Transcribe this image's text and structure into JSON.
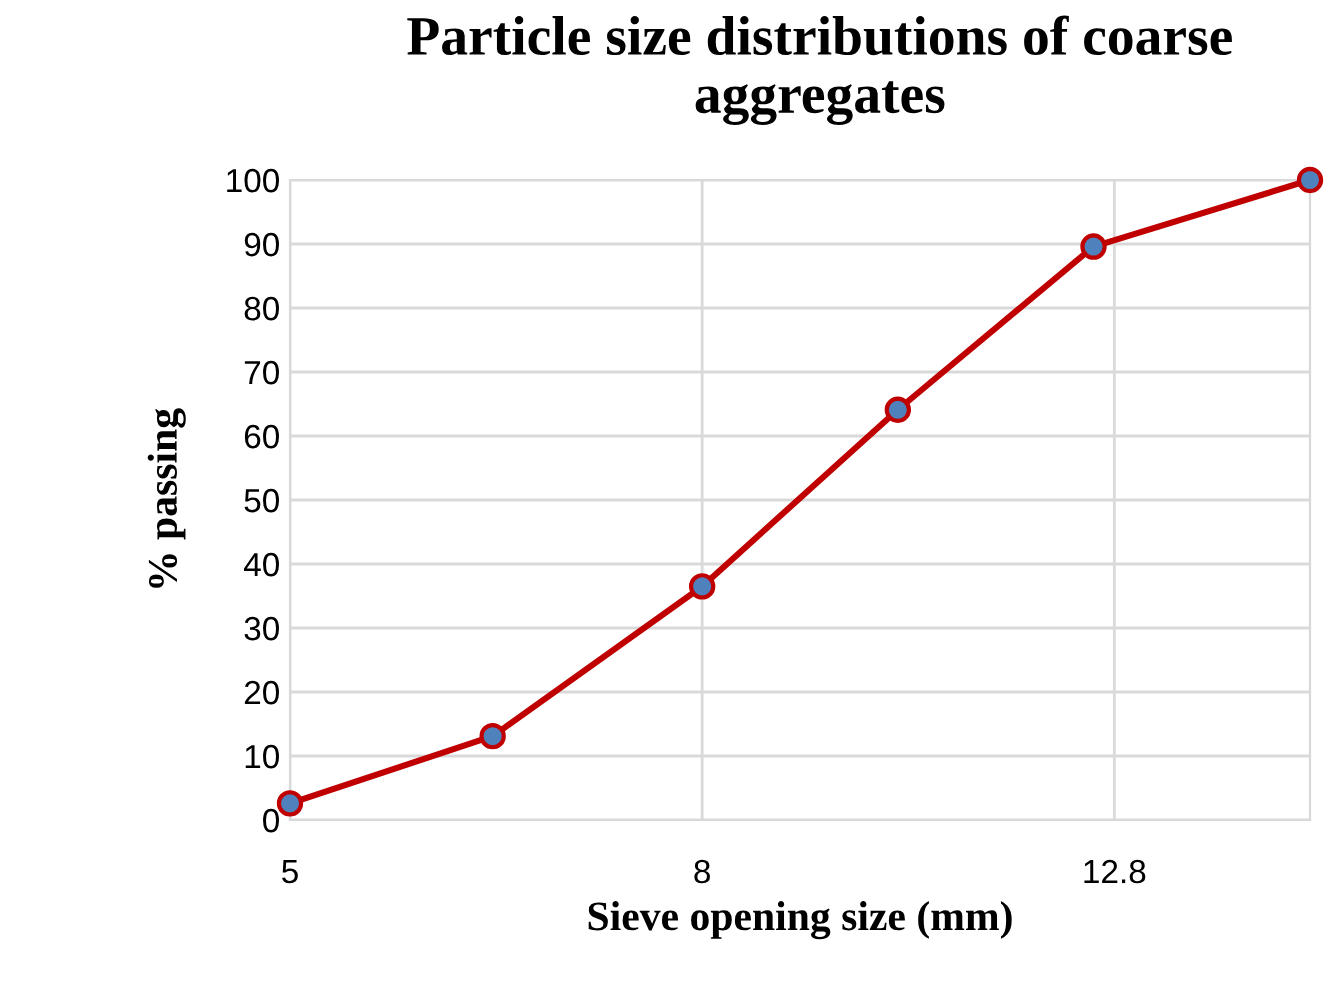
{
  "chart_data": {
    "type": "line",
    "title": "Particle size distributions of coarse aggregates",
    "xlabel": "Sieve opening size (mm)",
    "ylabel": "% passing",
    "x": [
      5,
      6.3,
      8,
      10,
      12.5,
      16
    ],
    "series": [
      {
        "color": "#c00000",
        "values": [
          2.6,
          13.1,
          36.5,
          64.1,
          89.6,
          100
        ]
      }
    ],
    "log": "x",
    "xlim": [
      5,
      16
    ],
    "xticks": [
      5,
      8,
      12.8
    ],
    "ylim": [
      0,
      100
    ],
    "yticks": [
      0,
      10,
      20,
      30,
      40,
      50,
      60,
      70,
      80,
      90,
      100
    ],
    "grid": true,
    "marker": "circle",
    "line_style": "solid"
  }
}
